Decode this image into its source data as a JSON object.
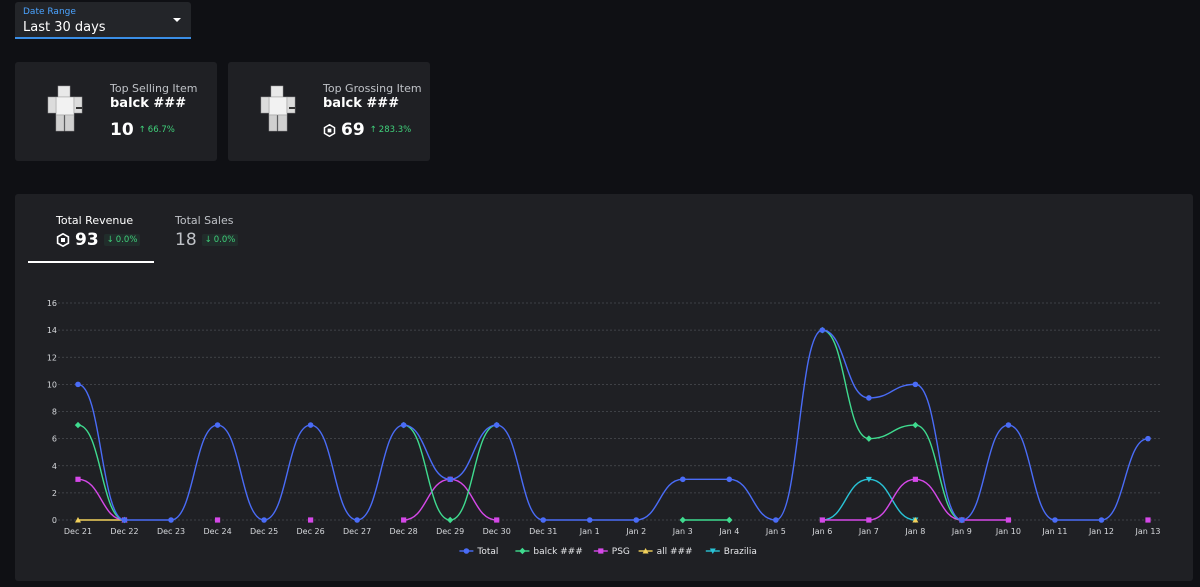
{
  "filter": {
    "label": "Date Range",
    "value": "Last 30 days"
  },
  "cards": [
    {
      "title": "Top Selling Item",
      "name": "balck ###",
      "value": "10",
      "delta": "66.7%",
      "thumbnail_icon": "avatar-shirt-icon"
    },
    {
      "title": "Top Grossing Item",
      "name": "balck ###",
      "value": "69",
      "delta": "283.3%",
      "thumbnail_icon": "avatar-shirt-icon",
      "currency_icon": "robux-icon"
    }
  ],
  "tabs": [
    {
      "label": "Total Revenue",
      "value": "93",
      "delta": "0.0%",
      "currency_icon": "robux-icon",
      "active": true
    },
    {
      "label": "Total Sales",
      "value": "18",
      "delta": "0.0%",
      "active": false
    }
  ],
  "colors": {
    "accent": "#3a8ee6",
    "positive": "#3fd07a",
    "Total": "#4a6cf7",
    "balck ###": "#3fdb8f",
    "PSG": "#d548e8",
    "all ###": "#f2d15c",
    "Brazilia": "#29c3d6"
  },
  "chart_data": {
    "type": "line",
    "x": [
      "Dec 21",
      "Dec 22",
      "Dec 23",
      "Dec 24",
      "Dec 25",
      "Dec 26",
      "Dec 27",
      "Dec 28",
      "Dec 29",
      "Dec 30",
      "Dec 31",
      "Jan 1",
      "Jan 2",
      "Jan 3",
      "Jan 4",
      "Jan 5",
      "Jan 6",
      "Jan 7",
      "Jan 8",
      "Jan 9",
      "Jan 10",
      "Jan 11",
      "Jan 12",
      "Jan 13"
    ],
    "ylim": [
      0,
      16
    ],
    "yticks": [
      0,
      2,
      4,
      6,
      8,
      10,
      12,
      14,
      16
    ],
    "grid": true,
    "legend_position": "bottom-center",
    "series": [
      {
        "name": "Total",
        "values": [
          10,
          0,
          0,
          7,
          0,
          7,
          0,
          7,
          3,
          7,
          0,
          0,
          0,
          3,
          3,
          0,
          14,
          9,
          10,
          0,
          7,
          0,
          0,
          6
        ]
      },
      {
        "name": "balck ###",
        "values": [
          7,
          0,
          null,
          null,
          null,
          null,
          null,
          7,
          0,
          7,
          null,
          null,
          null,
          0,
          0,
          null,
          14,
          6,
          7,
          0,
          null,
          null,
          null,
          null
        ]
      },
      {
        "name": "PSG",
        "values": [
          3,
          0,
          null,
          0,
          null,
          0,
          null,
          0,
          3,
          0,
          null,
          null,
          null,
          null,
          null,
          null,
          0,
          0,
          3,
          0,
          0,
          null,
          null,
          0
        ]
      },
      {
        "name": "all ###",
        "values": [
          0,
          0,
          null,
          null,
          null,
          null,
          null,
          null,
          null,
          null,
          null,
          null,
          null,
          null,
          null,
          null,
          null,
          null,
          0,
          null,
          null,
          null,
          null,
          null
        ]
      },
      {
        "name": "Brazilia",
        "values": [
          null,
          null,
          null,
          null,
          null,
          null,
          null,
          null,
          null,
          null,
          null,
          null,
          null,
          null,
          null,
          null,
          0,
          3,
          0,
          null,
          null,
          null,
          null,
          null
        ]
      }
    ]
  }
}
